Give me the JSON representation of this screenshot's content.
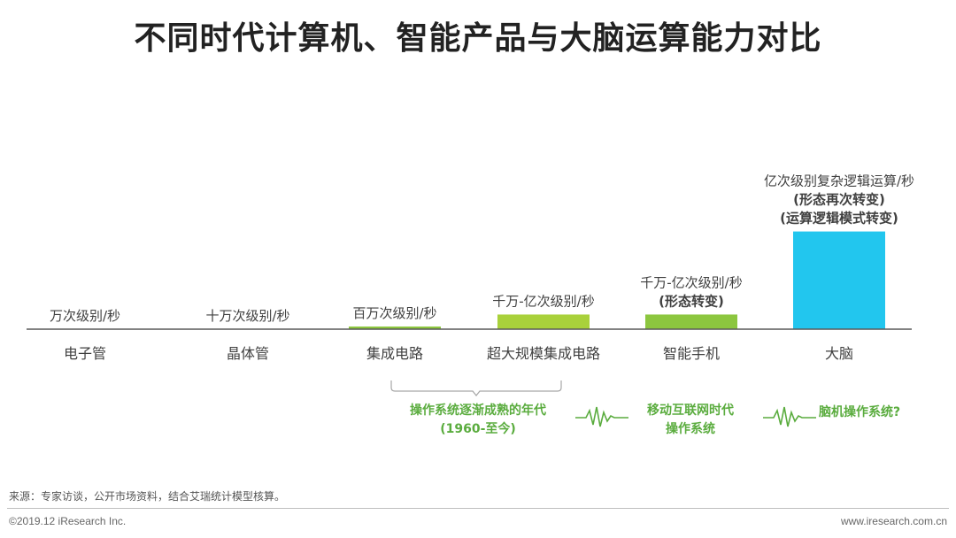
{
  "title": "不同时代计算机、智能产品与大脑运算能力对比",
  "chart_data": {
    "type": "bar",
    "categories": [
      "电子管",
      "晶体管",
      "集成电路",
      "超大规模集成电路",
      "智能手机",
      "大脑"
    ],
    "values": [
      0,
      0,
      1,
      9,
      9,
      60
    ],
    "value_note": "relative bar heights (bars unlabeled by numeric axis)",
    "colors": [
      "#8dc63f",
      "#8dc63f",
      "#8dc63f",
      "#a9d13b",
      "#8cc63f",
      "#22c6ee"
    ],
    "bar_labels": [
      [
        "万次级别/秒"
      ],
      [
        "十万次级别/秒"
      ],
      [
        "百万次级别/秒"
      ],
      [
        "千万-亿次级别/秒"
      ],
      [
        "千万-亿次级别/秒",
        "(形态转变)"
      ],
      [
        "亿次级别复杂逻辑运算/秒",
        "(形态再次转变)",
        "(运算逻辑模式转变)"
      ]
    ],
    "ylim": [
      0,
      100
    ],
    "grid": false,
    "legend": "none"
  },
  "eras": [
    {
      "lines": [
        "操作系统逐渐成熟的年代",
        "(1960-至今)"
      ]
    },
    {
      "lines": [
        "移动互联网时代",
        "操作系统"
      ]
    },
    {
      "lines": [
        "脑机操作系统?"
      ]
    }
  ],
  "accent_color": "#5aac3e",
  "source": "来源：专家访谈，公开市场资料，结合艾瑞统计模型核算。",
  "copyright": "©2019.12 iResearch Inc.",
  "website": "www.iresearch.com.cn"
}
